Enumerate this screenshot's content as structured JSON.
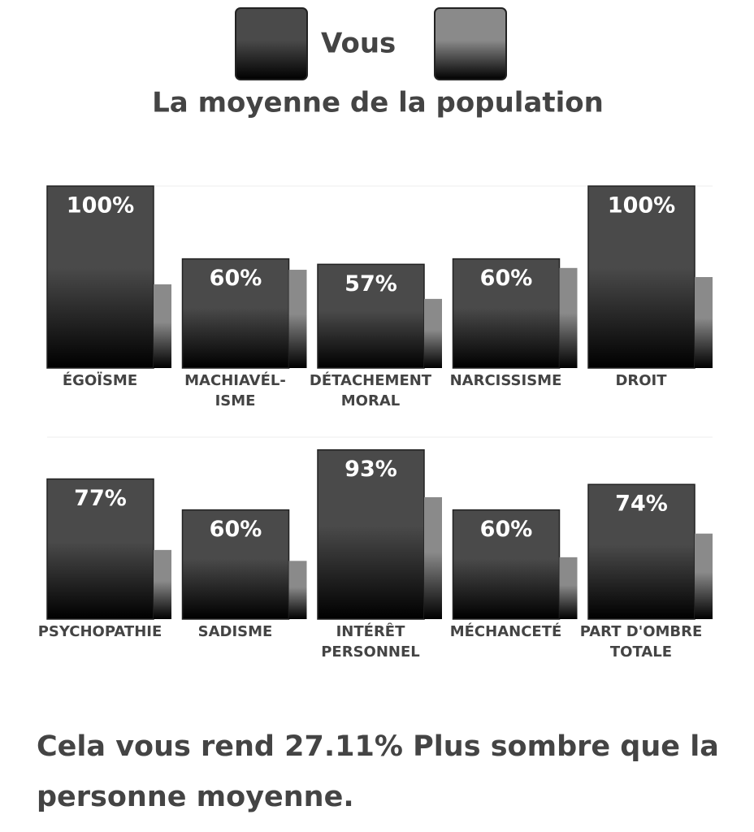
{
  "chart_data": [
    {
      "type": "bar",
      "categories": [
        "ÉGOÏSME",
        "MACHIAVÉL-\nISME",
        "DÉTACHEMENT\nMORAL",
        "NARCISSISME",
        "DROIT"
      ],
      "series": [
        {
          "name": "Vous",
          "color": "#4a4a4a",
          "values": [
            100,
            60,
            57,
            60,
            100
          ],
          "value_labels": [
            "100%",
            "60%",
            "57%",
            "60%",
            "100%"
          ]
        },
        {
          "name": "La moyenne de la population",
          "color": "#8a8a8a",
          "values": [
            46,
            54,
            38,
            55,
            50
          ]
        }
      ],
      "ylim": [
        0,
        100
      ]
    },
    {
      "type": "bar",
      "categories": [
        "PSYCHOPATHIE",
        "SADISME",
        "INTÉRÊT\nPERSONNEL",
        "MÉCHANCETÉ",
        "PART D'OMBRE\nTOTALE"
      ],
      "series": [
        {
          "name": "Vous",
          "color": "#4a4a4a",
          "values": [
            77,
            60,
            93,
            60,
            74
          ],
          "value_labels": [
            "77%",
            "60%",
            "93%",
            "60%",
            "74%"
          ]
        },
        {
          "name": "La moyenne de la population",
          "color": "#8a8a8a",
          "values": [
            38,
            32,
            67,
            34,
            47
          ]
        }
      ],
      "ylim": [
        0,
        100
      ]
    }
  ],
  "summary": "Cela vous rend 27.11% Plus sombre que la personne moyenne."
}
